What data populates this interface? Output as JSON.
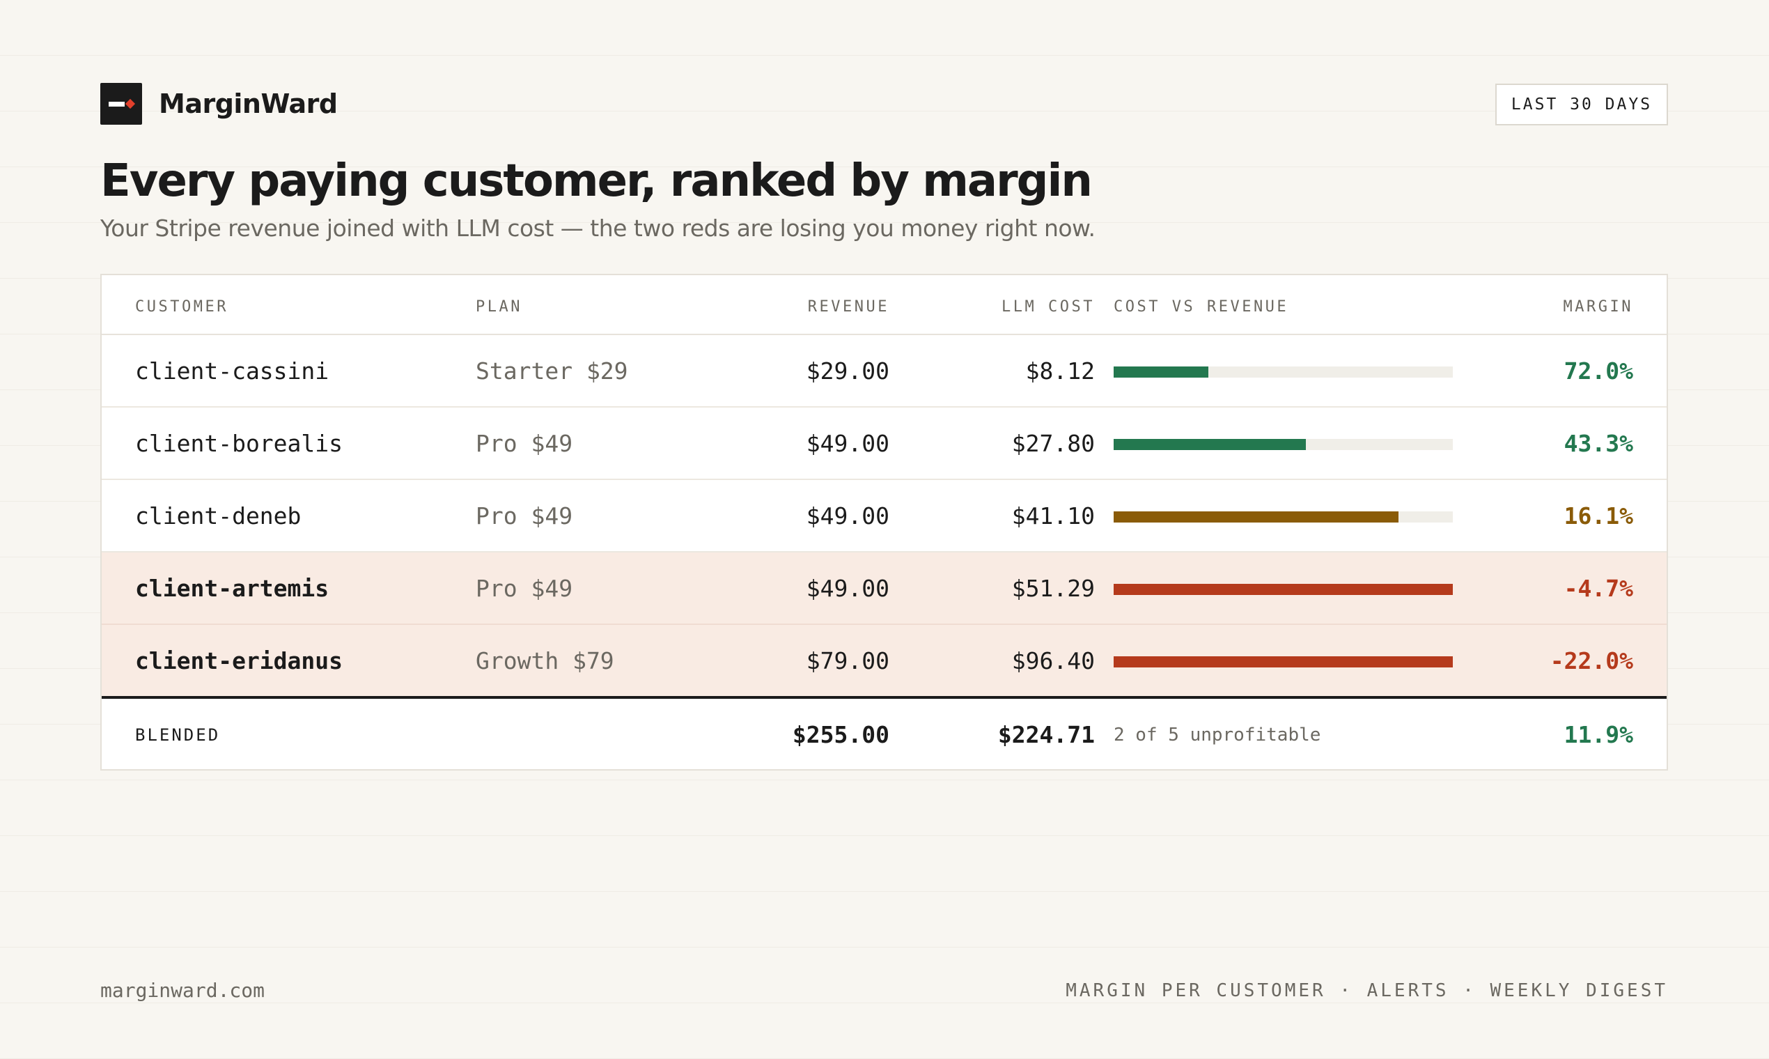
{
  "brand": {
    "name": "MarginWard"
  },
  "range_badge": "LAST 30 DAYS",
  "title": "Every paying customer, ranked by margin",
  "subtitle": "Your Stripe revenue joined with LLM cost — the two reds are losing you money right now.",
  "table": {
    "columns": {
      "customer": "CUSTOMER",
      "plan": "PLAN",
      "revenue": "REVENUE",
      "llm_cost": "LLM COST",
      "cost_vs_revenue": "COST VS REVENUE",
      "margin": "MARGIN"
    },
    "rows": [
      {
        "customer": "client-cassini",
        "plan": "Starter $29",
        "revenue": "$29.00",
        "llm_cost": "$8.12",
        "cost_ratio": 0.28,
        "margin": "72.0%",
        "status": "good"
      },
      {
        "customer": "client-borealis",
        "plan": "Pro $49",
        "revenue": "$49.00",
        "llm_cost": "$27.80",
        "cost_ratio": 0.567,
        "margin": "43.3%",
        "status": "good"
      },
      {
        "customer": "client-deneb",
        "plan": "Pro $49",
        "revenue": "$49.00",
        "llm_cost": "$41.10",
        "cost_ratio": 0.839,
        "margin": "16.1%",
        "status": "warn"
      },
      {
        "customer": "client-artemis",
        "plan": "Pro $49",
        "revenue": "$49.00",
        "llm_cost": "$51.29",
        "cost_ratio": 1.0,
        "margin": "-4.7%",
        "status": "loss"
      },
      {
        "customer": "client-eridanus",
        "plan": "Growth $79",
        "revenue": "$79.00",
        "llm_cost": "$96.40",
        "cost_ratio": 1.0,
        "margin": "-22.0%",
        "status": "loss"
      }
    ],
    "total": {
      "label": "BLENDED",
      "revenue": "$255.00",
      "llm_cost": "$224.71",
      "note": "2 of 5 unprofitable",
      "margin": "11.9%",
      "status": "good"
    }
  },
  "colors": {
    "good": "#23784f",
    "warn": "#8a5b08",
    "loss": "#b53a1c"
  },
  "footer": {
    "site": "marginward.com",
    "features": "MARGIN PER CUSTOMER · ALERTS · WEEKLY DIGEST"
  }
}
